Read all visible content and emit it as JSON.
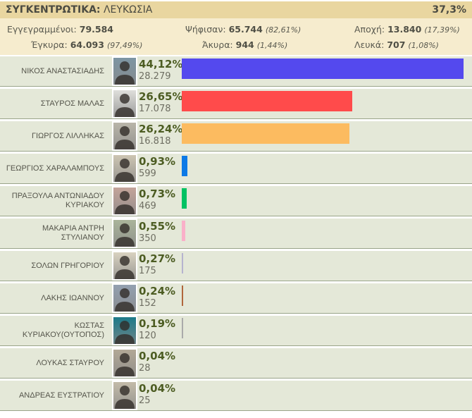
{
  "header": {
    "title": "ΣΥΓΚΕΝΤΡΩΤΙΚΑ:",
    "region": "ΛΕΥΚΩΣΙΑ",
    "progress": "37,3%"
  },
  "stats": {
    "registered": {
      "label": "Εγγεγραμμένοι:",
      "value": "79.584",
      "pct": ""
    },
    "voted": {
      "label": "Ψήφισαν:",
      "value": "65.744",
      "pct": "(82,61%)"
    },
    "abstention": {
      "label": "Αποχή:",
      "value": "13.840",
      "pct": "(17,39%)"
    },
    "valid": {
      "label": "Έγκυρα:",
      "value": "64.093",
      "pct": "(97,49%)"
    },
    "invalid": {
      "label": "Άκυρα:",
      "value": "944",
      "pct": "(1,44%)"
    },
    "blank": {
      "label": "Λευκά:",
      "value": "707",
      "pct": "(1,08%)"
    }
  },
  "colors": {
    "header_bg": "#e9d6a0",
    "stats_bg": "#f6ecce",
    "row_bg": "#e4e8d8",
    "percent_text": "#4c5c22"
  },
  "chart_data": {
    "type": "bar",
    "orientation": "horizontal",
    "title": "ΣΥΓΚΕΝΤΡΩΤΙΚΑ: ΛΕΥΚΩΣΙΑ",
    "xlim": [
      0,
      44.12
    ],
    "max_pct": 44.12,
    "candidates": [
      {
        "name": "ΝΙΚΟΣ ΑΝΑΣΤΑΣΙΑΔΗΣ",
        "pct": 44.12,
        "pct_label": "44,12%",
        "votes": "28.279",
        "color": "#5449ee",
        "photo_bg": "#7d95a3"
      },
      {
        "name": "ΣΤΑΥΡΟΣ ΜΑΛΑΣ",
        "pct": 26.65,
        "pct_label": "26,65%",
        "votes": "17.078",
        "color": "#ff4b4b",
        "photo_bg": "#dfdfdb"
      },
      {
        "name": "ΓΙΩΡΓΟΣ ΛΙΛΛΗΚΑΣ",
        "pct": 26.24,
        "pct_label": "26,24%",
        "votes": "16.818",
        "color": "#fcbb60",
        "photo_bg": "#b9b5a9"
      },
      {
        "name": "ΓΕΩΡΓΙΟΣ ΧΑΡΑΛΑΜΠΟΥΣ",
        "pct": 0.93,
        "pct_label": "0,93%",
        "votes": "599",
        "color": "#0c79e6",
        "photo_bg": "#cdc5b2"
      },
      {
        "name": "ΠΡΑΞΟΥΛΑ ΑΝΤΩΝΙΑΔΟΥ ΚΥΡΙΑΚΟΥ",
        "pct": 0.73,
        "pct_label": "0,73%",
        "votes": "469",
        "color": "#00c263",
        "photo_bg": "#c4a49a"
      },
      {
        "name": "ΜΑΚΑΡΙΑ ΑΝΤΡΗ ΣΤΥΛΙΑΝΟΥ",
        "pct": 0.55,
        "pct_label": "0,55%",
        "votes": "350",
        "color": "#fab0c9",
        "photo_bg": "#aab49a"
      },
      {
        "name": "ΣΟΛΩΝ ΓΡΗΓΟΡΙΟΥ",
        "pct": 0.27,
        "pct_label": "0,27%",
        "votes": "175",
        "color": "#b6b3cf",
        "photo_bg": "#d9d2c0"
      },
      {
        "name": "ΛΑΚΗΣ ΙΩΑΝΝΟΥ",
        "pct": 0.24,
        "pct_label": "0,24%",
        "votes": "152",
        "color": "#b0663c",
        "photo_bg": "#93a0b0"
      },
      {
        "name": "ΚΩΣΤΑΣ ΚΥΡΙΑΚΟΥ(ΟΥΤΟΠΟΣ)",
        "pct": 0.19,
        "pct_label": "0,19%",
        "votes": "120",
        "color": "#aaaaaa",
        "photo_bg": "#1c7a89"
      },
      {
        "name": "ΛΟΥΚΑΣ ΣΤΑΥΡΟΥ",
        "pct": 0.04,
        "pct_label": "0,04%",
        "votes": "28",
        "color": "#999999",
        "photo_bg": "#b2a896"
      },
      {
        "name": "ΑΝΔΡΕΑΣ ΕΥΣΤΡΑΤΙΟΥ",
        "pct": 0.04,
        "pct_label": "0,04%",
        "votes": "25",
        "color": "#999999",
        "photo_bg": "#c3bba9"
      }
    ]
  }
}
